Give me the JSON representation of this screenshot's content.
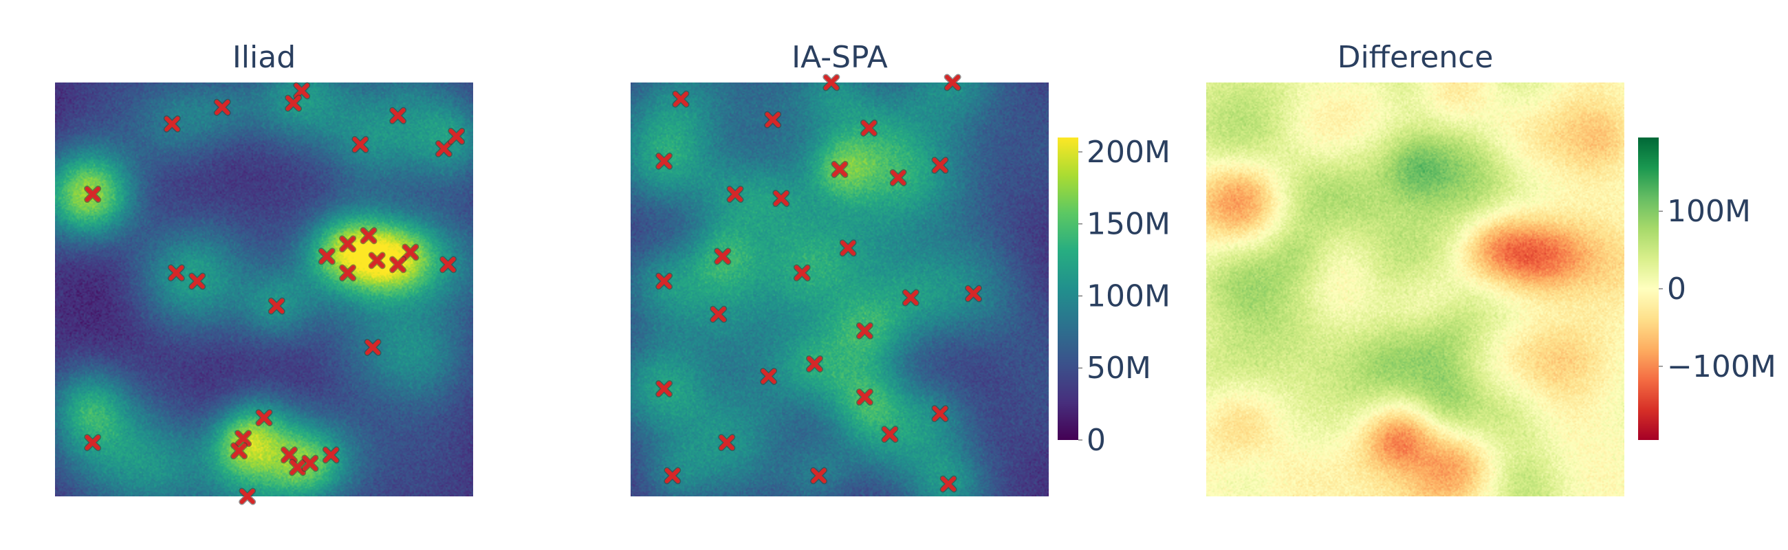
{
  "chart_data": [
    {
      "type": "heatmap",
      "title": "Iliad",
      "markers": [
        [
          0.09,
          0.73
        ],
        [
          0.4,
          0.94
        ],
        [
          0.59,
          0.98
        ],
        [
          0.82,
          0.92
        ],
        [
          0.28,
          0.9
        ],
        [
          0.73,
          0.85
        ],
        [
          0.7,
          0.61
        ],
        [
          0.75,
          0.63
        ],
        [
          0.85,
          0.59
        ],
        [
          0.65,
          0.58
        ],
        [
          0.7,
          0.54
        ],
        [
          0.77,
          0.57
        ],
        [
          0.82,
          0.56
        ],
        [
          0.94,
          0.56
        ],
        [
          0.29,
          0.54
        ],
        [
          0.34,
          0.52
        ],
        [
          0.53,
          0.46
        ],
        [
          0.76,
          0.36
        ],
        [
          0.5,
          0.19
        ],
        [
          0.45,
          0.14
        ],
        [
          0.44,
          0.11
        ],
        [
          0.56,
          0.1
        ],
        [
          0.58,
          0.07
        ],
        [
          0.61,
          0.08
        ],
        [
          0.66,
          0.1
        ],
        [
          0.09,
          0.13
        ],
        [
          0.46,
          0.0
        ],
        [
          0.57,
          0.95
        ],
        [
          0.93,
          0.84
        ],
        [
          0.96,
          0.87
        ]
      ]
    },
    {
      "type": "heatmap",
      "title": "IA-SPA",
      "markers": [
        [
          0.12,
          0.96
        ],
        [
          0.34,
          0.91
        ],
        [
          0.57,
          0.89
        ],
        [
          0.08,
          0.81
        ],
        [
          0.5,
          0.79
        ],
        [
          0.64,
          0.77
        ],
        [
          0.74,
          0.8
        ],
        [
          0.25,
          0.73
        ],
        [
          0.36,
          0.72
        ],
        [
          0.22,
          0.58
        ],
        [
          0.52,
          0.6
        ],
        [
          0.08,
          0.52
        ],
        [
          0.41,
          0.54
        ],
        [
          0.21,
          0.44
        ],
        [
          0.67,
          0.48
        ],
        [
          0.82,
          0.49
        ],
        [
          0.56,
          0.4
        ],
        [
          0.44,
          0.32
        ],
        [
          0.33,
          0.29
        ],
        [
          0.08,
          0.26
        ],
        [
          0.56,
          0.24
        ],
        [
          0.74,
          0.2
        ],
        [
          0.23,
          0.13
        ],
        [
          0.62,
          0.15
        ],
        [
          0.1,
          0.05
        ],
        [
          0.45,
          0.05
        ],
        [
          0.76,
          0.03
        ],
        [
          0.48,
          1.0
        ],
        [
          0.77,
          1.0
        ]
      ]
    },
    {
      "type": "heatmap",
      "title": "Difference"
    }
  ],
  "colorbars": {
    "magnitude": {
      "ticks": [
        "0",
        "50M",
        "100M",
        "150M",
        "200M"
      ],
      "range": [
        0,
        210000000
      ],
      "tick_values": [
        0,
        50000000,
        100000000,
        150000000,
        200000000
      ],
      "colors": [
        "#440154",
        "#472f7d",
        "#3b518b",
        "#2c718e",
        "#21908d",
        "#27ad81",
        "#5cc863",
        "#aadc32",
        "#fde725"
      ]
    },
    "difference": {
      "ticks": [
        "100M",
        "0",
        "−100M"
      ],
      "range": [
        -195000000,
        195000000
      ],
      "tick_values": [
        100000000,
        0,
        -100000000
      ],
      "colors": [
        "#a50026",
        "#d73027",
        "#f46d43",
        "#fdae61",
        "#fee08b",
        "#ffffbf",
        "#d9ef8b",
        "#a6d96a",
        "#66bd63",
        "#1a9850",
        "#006837"
      ]
    }
  },
  "marker_color": "#d62728"
}
